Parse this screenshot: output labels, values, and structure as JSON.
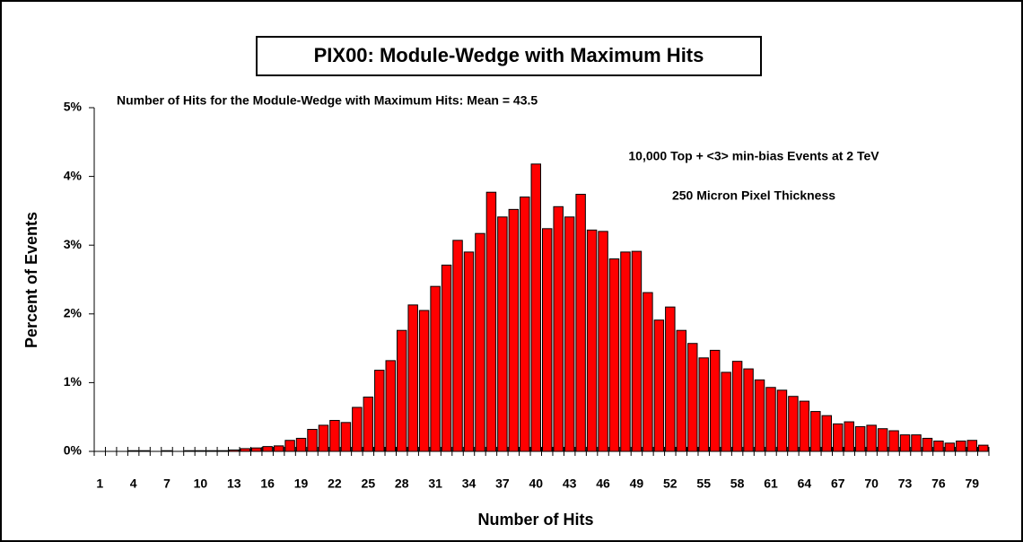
{
  "chart_data": {
    "type": "bar",
    "title": "PIX00: Module-Wedge with Maximum Hits",
    "subtitle": "Number of Hits for the Module-Wedge with Maximum Hits: Mean = 43.5",
    "annotations": [
      "10,000 Top + <3> min-bias Events at 2 TeV",
      "250 Micron Pixel Thickness"
    ],
    "x_label": "Number of Hits",
    "y_label": "Percent of Events",
    "categories": [
      "1",
      null,
      null,
      "4",
      null,
      null,
      "7",
      null,
      null,
      "10",
      null,
      null,
      "13",
      null,
      null,
      "16",
      null,
      null,
      "19",
      null,
      null,
      "22",
      null,
      null,
      "25",
      null,
      null,
      "28",
      null,
      null,
      "31",
      null,
      null,
      "34",
      null,
      null,
      "37",
      null,
      null,
      "40",
      null,
      null,
      "43",
      null,
      null,
      "46",
      null,
      null,
      "49",
      null,
      null,
      "52",
      null,
      null,
      "55",
      null,
      null,
      "58",
      null,
      null,
      "61",
      null,
      null,
      "64",
      null,
      null,
      "67",
      null,
      null,
      "70",
      null,
      null,
      "73",
      null,
      null,
      "76",
      null,
      null,
      "79",
      null
    ],
    "values": [
      0,
      0,
      0,
      0.01,
      0.01,
      0,
      0.01,
      0,
      0.01,
      0.01,
      0.01,
      0.01,
      0.02,
      0.04,
      0.05,
      0.07,
      0.08,
      0.16,
      0.19,
      0.32,
      0.38,
      0.45,
      0.42,
      0.64,
      0.79,
      1.18,
      1.32,
      1.76,
      2.13,
      2.05,
      2.4,
      2.71,
      3.07,
      2.9,
      3.17,
      3.77,
      3.41,
      3.52,
      3.7,
      4.18,
      3.24,
      3.56,
      3.41,
      3.74,
      3.22,
      3.2,
      2.8,
      2.9,
      2.91,
      2.31,
      1.91,
      2.1,
      1.76,
      1.57,
      1.36,
      1.47,
      1.15,
      1.31,
      1.2,
      1.04,
      0.93,
      0.89,
      0.8,
      0.73,
      0.58,
      0.52,
      0.4,
      0.43,
      0.36,
      0.38,
      0.33,
      0.3,
      0.24,
      0.24,
      0.19,
      0.15,
      0.12,
      0.15,
      0.16,
      0.09
    ],
    "color": "#ff0000",
    "ylim": [
      0,
      5
    ],
    "yticks": [
      {
        "value": 0,
        "label": "0%"
      },
      {
        "value": 1,
        "label": "1%"
      },
      {
        "value": 2,
        "label": "2%"
      },
      {
        "value": 3,
        "label": "3%"
      },
      {
        "value": 4,
        "label": "4%"
      },
      {
        "value": 5,
        "label": "5%"
      }
    ],
    "grid": false
  }
}
